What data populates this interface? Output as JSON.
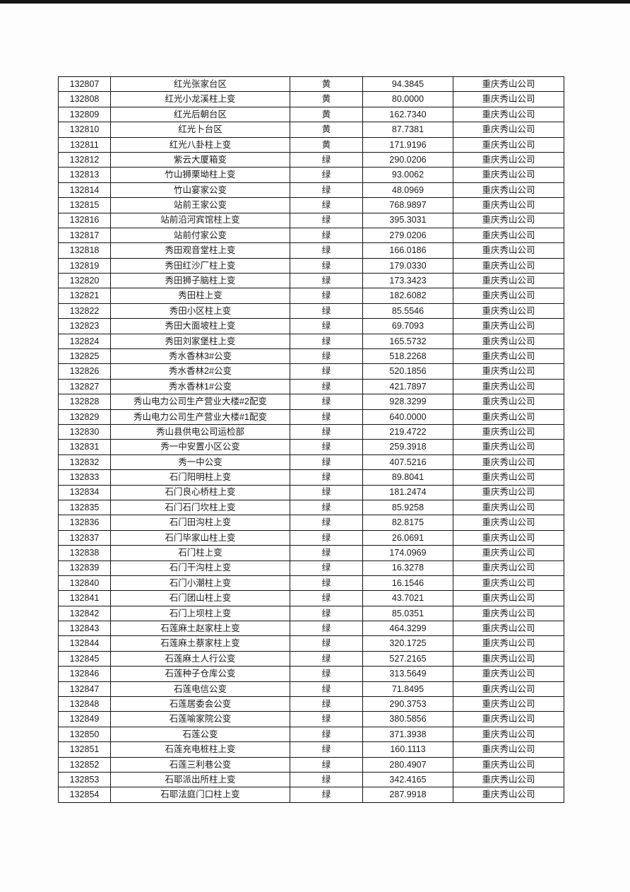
{
  "page": {
    "background_color": "#fdfdfd",
    "top_edge_color": "#141414"
  },
  "table": {
    "column_keys": [
      "id",
      "name",
      "status",
      "value",
      "company"
    ],
    "rows": [
      {
        "id": "132807",
        "name": "红光张家台区",
        "status": "黄",
        "value": "94.3845",
        "company": "重庆秀山公司"
      },
      {
        "id": "132808",
        "name": "红光小龙溪柱上变",
        "status": "黄",
        "value": "80.0000",
        "company": "重庆秀山公司"
      },
      {
        "id": "132809",
        "name": "红光后朝台区",
        "status": "黄",
        "value": "162.7340",
        "company": "重庆秀山公司"
      },
      {
        "id": "132810",
        "name": "红光卜台区",
        "status": "黄",
        "value": "87.7381",
        "company": "重庆秀山公司"
      },
      {
        "id": "132811",
        "name": "红光八卦柱上变",
        "status": "黄",
        "value": "171.9196",
        "company": "重庆秀山公司"
      },
      {
        "id": "132812",
        "name": "紫云大厦箱变",
        "status": "绿",
        "value": "290.0206",
        "company": "重庆秀山公司"
      },
      {
        "id": "132813",
        "name": "竹山狮栗坳柱上变",
        "status": "绿",
        "value": "93.0062",
        "company": "重庆秀山公司"
      },
      {
        "id": "132814",
        "name": "竹山宴家公变",
        "status": "绿",
        "value": "48.0969",
        "company": "重庆秀山公司"
      },
      {
        "id": "132815",
        "name": "站前王家公变",
        "status": "绿",
        "value": "768.9897",
        "company": "重庆秀山公司"
      },
      {
        "id": "132816",
        "name": "站前沿河宾馆柱上变",
        "status": "绿",
        "value": "395.3031",
        "company": "重庆秀山公司"
      },
      {
        "id": "132817",
        "name": "站前付家公变",
        "status": "绿",
        "value": "279.0206",
        "company": "重庆秀山公司"
      },
      {
        "id": "132818",
        "name": "秀田观音堂柱上变",
        "status": "绿",
        "value": "166.0186",
        "company": "重庆秀山公司"
      },
      {
        "id": "132819",
        "name": "秀田红沙厂柱上变",
        "status": "绿",
        "value": "179.0330",
        "company": "重庆秀山公司"
      },
      {
        "id": "132820",
        "name": "秀田狮子脑柱上变",
        "status": "绿",
        "value": "173.3423",
        "company": "重庆秀山公司"
      },
      {
        "id": "132821",
        "name": "秀田柱上变",
        "status": "绿",
        "value": "182.6082",
        "company": "重庆秀山公司"
      },
      {
        "id": "132822",
        "name": "秀田小区柱上变",
        "status": "绿",
        "value": "85.5546",
        "company": "重庆秀山公司"
      },
      {
        "id": "132823",
        "name": "秀田大面坡柱上变",
        "status": "绿",
        "value": "69.7093",
        "company": "重庆秀山公司"
      },
      {
        "id": "132824",
        "name": "秀田刘家堡柱上变",
        "status": "绿",
        "value": "165.5732",
        "company": "重庆秀山公司"
      },
      {
        "id": "132825",
        "name": "秀水香林3#公变",
        "status": "绿",
        "value": "518.2268",
        "company": "重庆秀山公司"
      },
      {
        "id": "132826",
        "name": "秀水香林2#公变",
        "status": "绿",
        "value": "520.1856",
        "company": "重庆秀山公司"
      },
      {
        "id": "132827",
        "name": "秀水香林1#公变",
        "status": "绿",
        "value": "421.7897",
        "company": "重庆秀山公司"
      },
      {
        "id": "132828",
        "name": "秀山电力公司生产营业大楼#2配变",
        "status": "绿",
        "value": "928.3299",
        "company": "重庆秀山公司"
      },
      {
        "id": "132829",
        "name": "秀山电力公司生产营业大楼#1配变",
        "status": "绿",
        "value": "640.0000",
        "company": "重庆秀山公司"
      },
      {
        "id": "132830",
        "name": "秀山县供电公司运检部",
        "status": "绿",
        "value": "219.4722",
        "company": "重庆秀山公司"
      },
      {
        "id": "132831",
        "name": "秀一中安置小区公变",
        "status": "绿",
        "value": "259.3918",
        "company": "重庆秀山公司"
      },
      {
        "id": "132832",
        "name": "秀一中公变",
        "status": "绿",
        "value": "407.5216",
        "company": "重庆秀山公司"
      },
      {
        "id": "132833",
        "name": "石门阳明柱上变",
        "status": "绿",
        "value": "89.8041",
        "company": "重庆秀山公司"
      },
      {
        "id": "132834",
        "name": "石门良心桥柱上变",
        "status": "绿",
        "value": "181.2474",
        "company": "重庆秀山公司"
      },
      {
        "id": "132835",
        "name": "石门石门坎柱上变",
        "status": "绿",
        "value": "85.9258",
        "company": "重庆秀山公司"
      },
      {
        "id": "132836",
        "name": "石门田沟柱上变",
        "status": "绿",
        "value": "82.8175",
        "company": "重庆秀山公司"
      },
      {
        "id": "132837",
        "name": "石门毕家山柱上变",
        "status": "绿",
        "value": "26.0691",
        "company": "重庆秀山公司"
      },
      {
        "id": "132838",
        "name": "石门柱上变",
        "status": "绿",
        "value": "174.0969",
        "company": "重庆秀山公司"
      },
      {
        "id": "132839",
        "name": "石门干沟柱上变",
        "status": "绿",
        "value": "16.3278",
        "company": "重庆秀山公司"
      },
      {
        "id": "132840",
        "name": "石门小潮柱上变",
        "status": "绿",
        "value": "16.1546",
        "company": "重庆秀山公司"
      },
      {
        "id": "132841",
        "name": "石门团山柱上变",
        "status": "绿",
        "value": "43.7021",
        "company": "重庆秀山公司"
      },
      {
        "id": "132842",
        "name": "石门上坝柱上变",
        "status": "绿",
        "value": "85.0351",
        "company": "重庆秀山公司"
      },
      {
        "id": "132843",
        "name": "石莲麻土赵家柱上变",
        "status": "绿",
        "value": "464.3299",
        "company": "重庆秀山公司"
      },
      {
        "id": "132844",
        "name": "石莲麻土蔡家柱上变",
        "status": "绿",
        "value": "320.1725",
        "company": "重庆秀山公司"
      },
      {
        "id": "132845",
        "name": "石莲麻土人行公变",
        "status": "绿",
        "value": "527.2165",
        "company": "重庆秀山公司"
      },
      {
        "id": "132846",
        "name": "石莲种子仓库公变",
        "status": "绿",
        "value": "313.5649",
        "company": "重庆秀山公司"
      },
      {
        "id": "132847",
        "name": "石莲电信公变",
        "status": "绿",
        "value": "71.8495",
        "company": "重庆秀山公司"
      },
      {
        "id": "132848",
        "name": "石莲居委会公变",
        "status": "绿",
        "value": "290.3753",
        "company": "重庆秀山公司"
      },
      {
        "id": "132849",
        "name": "石莲喻家院公变",
        "status": "绿",
        "value": "380.5856",
        "company": "重庆秀山公司"
      },
      {
        "id": "132850",
        "name": "石莲公变",
        "status": "绿",
        "value": "371.3938",
        "company": "重庆秀山公司"
      },
      {
        "id": "132851",
        "name": "石莲充电桩柱上变",
        "status": "绿",
        "value": "160.1113",
        "company": "重庆秀山公司"
      },
      {
        "id": "132852",
        "name": "石莲三利巷公变",
        "status": "绿",
        "value": "280.4907",
        "company": "重庆秀山公司"
      },
      {
        "id": "132853",
        "name": "石耶派出所柱上变",
        "status": "绿",
        "value": "342.4165",
        "company": "重庆秀山公司"
      },
      {
        "id": "132854",
        "name": "石耶法庭门口柱上变",
        "status": "绿",
        "value": "287.9918",
        "company": "重庆秀山公司"
      }
    ]
  }
}
